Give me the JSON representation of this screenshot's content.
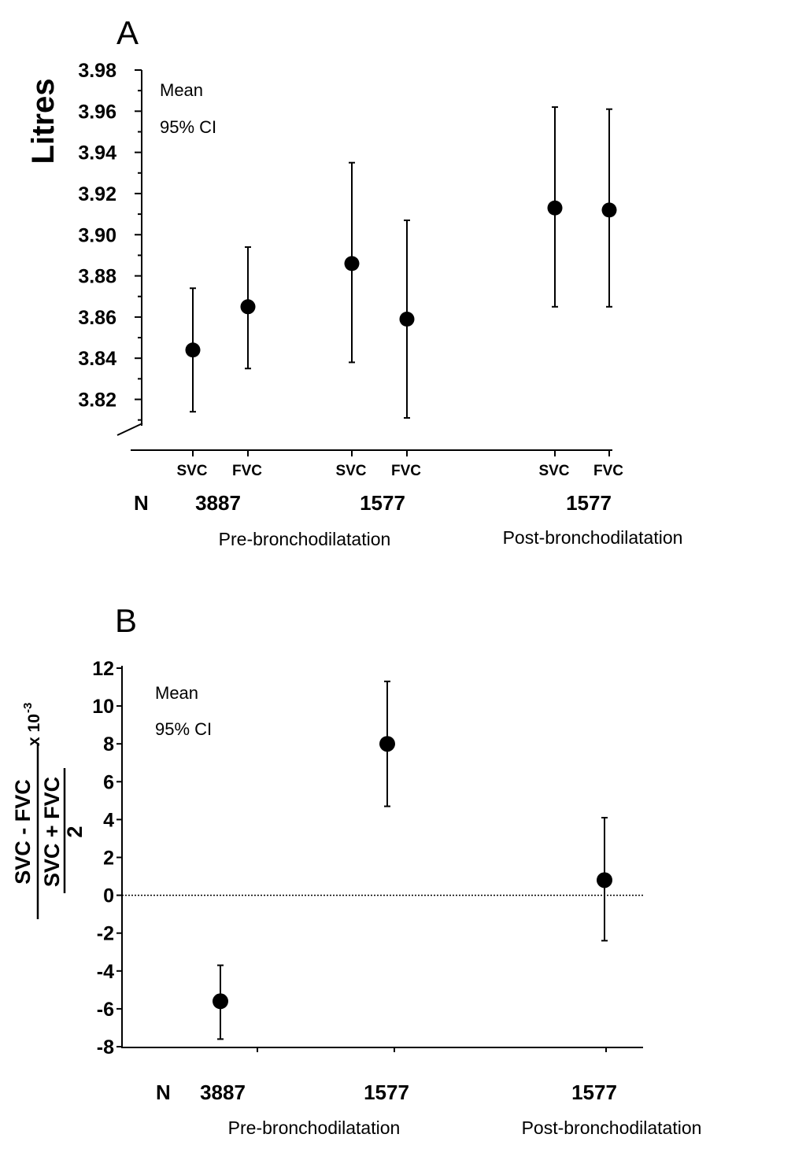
{
  "chart_data": [
    {
      "panel_label": "A",
      "type": "scatter",
      "ylabel": "Litres",
      "legend": [
        "Mean",
        "95% CI"
      ],
      "ylim": [
        3.8,
        3.98
      ],
      "yticks": [
        "3.82",
        "3.84",
        "3.86",
        "3.88",
        "3.90",
        "3.92",
        "3.94",
        "3.96",
        "3.98"
      ],
      "axis_break": true,
      "n_label": "N",
      "points": [
        {
          "label": "SVC",
          "group": "Pre-bronchodilatation",
          "n": "3887",
          "mean": 3.844,
          "ci": [
            3.814,
            3.874
          ]
        },
        {
          "label": "FVC",
          "group": "Pre-bronchodilatation",
          "n": "3887",
          "mean": 3.865,
          "ci": [
            3.835,
            3.894
          ]
        },
        {
          "label": "SVC",
          "group": "Pre-bronchodilatation",
          "n": "1577",
          "mean": 3.886,
          "ci": [
            3.838,
            3.935
          ]
        },
        {
          "label": "FVC",
          "group": "Pre-bronchodilatation",
          "n": "1577",
          "mean": 3.859,
          "ci": [
            3.811,
            3.907
          ]
        },
        {
          "label": "SVC",
          "group": "Post-bronchodilatation",
          "n": "1577",
          "mean": 3.913,
          "ci": [
            3.865,
            3.962
          ]
        },
        {
          "label": "FVC",
          "group": "Post-bronchodilatation",
          "n": "1577",
          "mean": 3.912,
          "ci": [
            3.865,
            3.961
          ]
        }
      ],
      "n_values": [
        "3887",
        "1577",
        "1577"
      ],
      "group_labels": [
        "Pre-bronchodilatation",
        "Post-bronchodilatation"
      ]
    },
    {
      "panel_label": "B",
      "type": "scatter",
      "ylabel": {
        "numerator": "SVC - FVC",
        "denominator_top": "SVC + FVC",
        "denominator_bottom": "2",
        "multiplier": "x 10",
        "exponent": "-3"
      },
      "legend": [
        "Mean",
        "95% CI"
      ],
      "ylim": [
        -8,
        12
      ],
      "yticks": [
        "-8",
        "-6",
        "-4",
        "-2",
        "0",
        "2",
        "4",
        "6",
        "8",
        "10",
        "12"
      ],
      "reference_line": 0,
      "n_label": "N",
      "points": [
        {
          "group": "Pre-bronchodilatation",
          "n": "3887",
          "mean": -5.6,
          "ci": [
            -7.6,
            -3.7
          ]
        },
        {
          "group": "Pre-bronchodilatation",
          "n": "1577",
          "mean": 8.0,
          "ci": [
            4.7,
            11.3
          ]
        },
        {
          "group": "Post-bronchodilatation",
          "n": "1577",
          "mean": 0.8,
          "ci": [
            -2.4,
            4.1
          ]
        }
      ],
      "n_values": [
        "3887",
        "1577",
        "1577"
      ],
      "group_labels": [
        "Pre-bronchodilatation",
        "Post-bronchodilatation"
      ]
    }
  ]
}
